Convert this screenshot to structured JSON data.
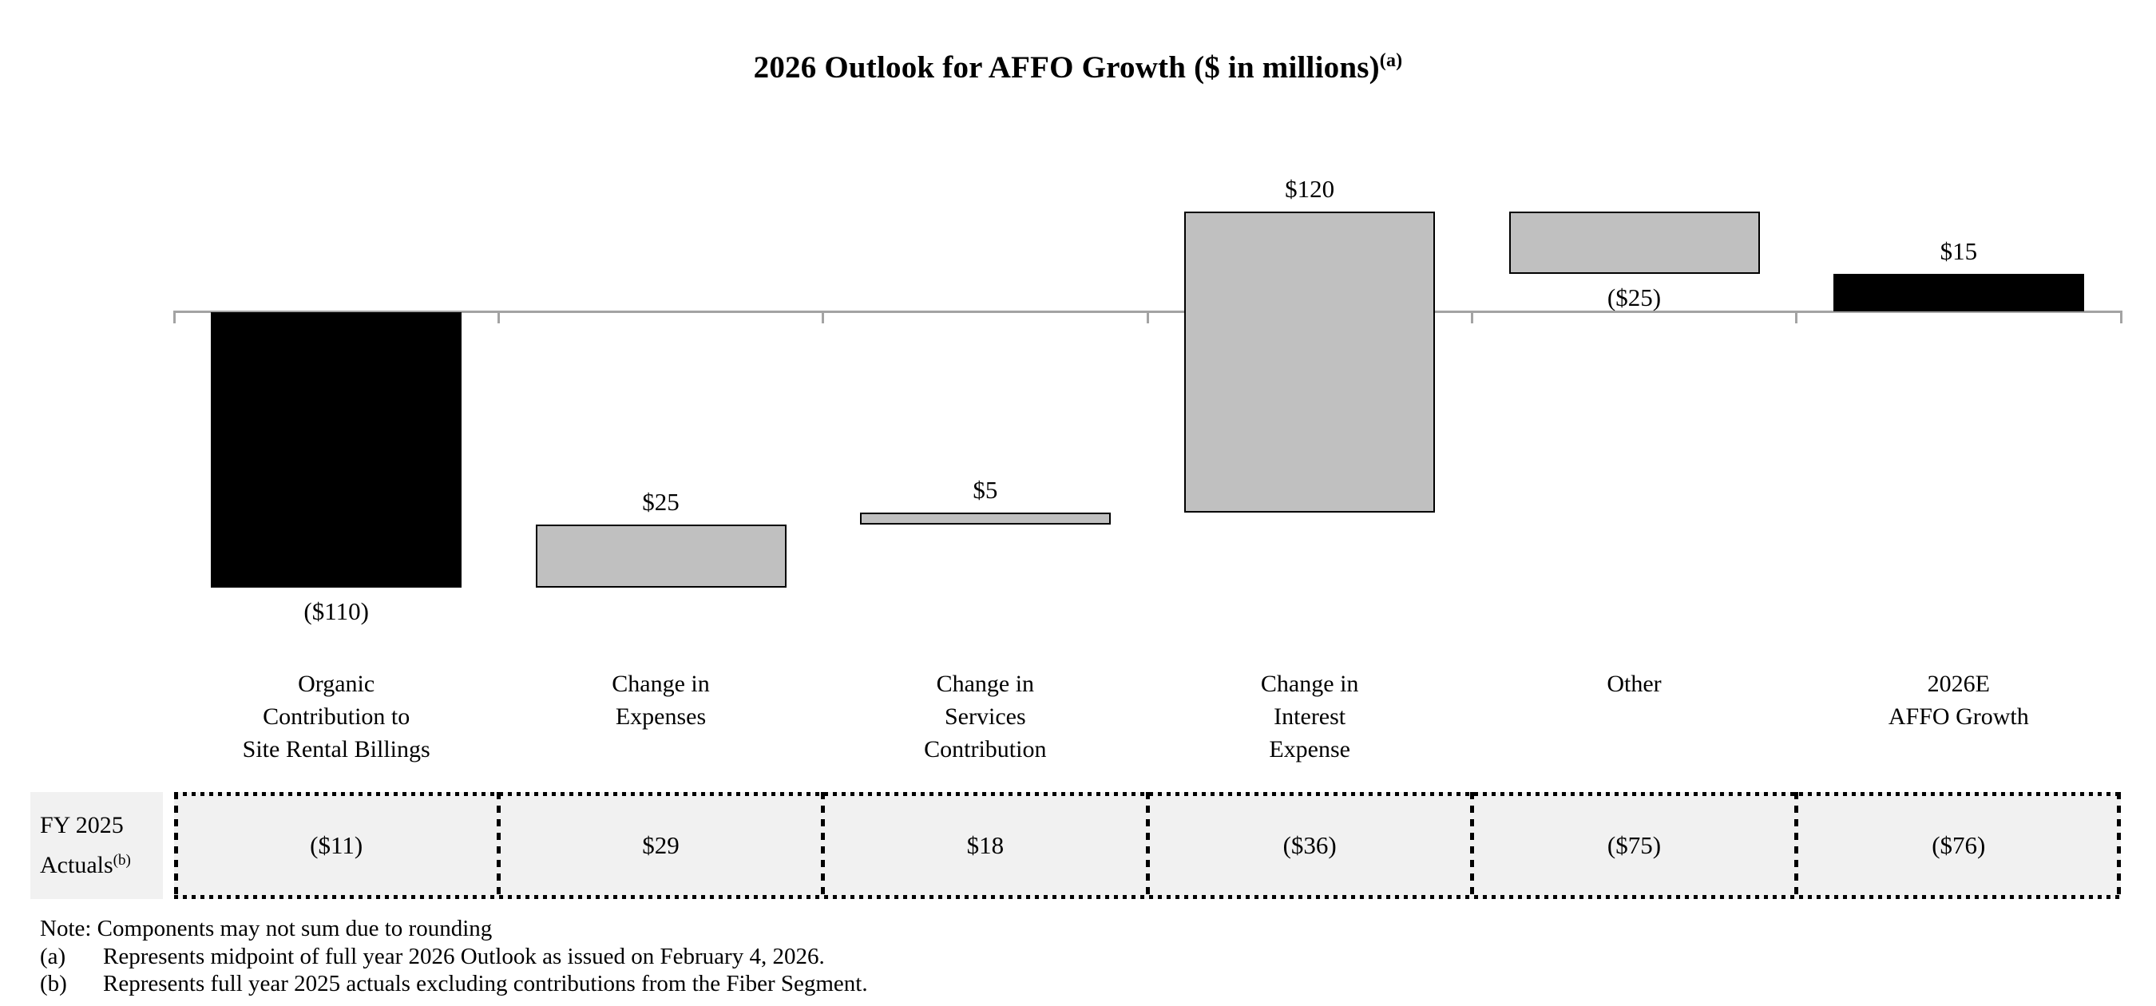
{
  "title": {
    "text": "2026 Outlook for AFFO Growth ($ in millions)",
    "superscript": "(a)"
  },
  "chart_data": {
    "type": "bar",
    "subtype": "waterfall",
    "title": "2026 Outlook for AFFO Growth ($ in millions)(a)",
    "ylim": [
      -110,
      40
    ],
    "grid": false,
    "legend": "none",
    "axis_color": "#a3a3a3",
    "colors": {
      "black": "#000000",
      "gray": "#c0c0c0"
    },
    "categories": [
      "Organic\nContribution to\nSite Rental Billings",
      "Change in\nExpenses",
      "Change in\nServices\nContribution",
      "Change in\nInterest\nExpense",
      "Other",
      "2026E\nAFFO Growth"
    ],
    "bars": [
      {
        "label": "($110)",
        "value": -110,
        "start": 0,
        "end": -110,
        "color": "black",
        "label_position": "below"
      },
      {
        "label": "$25",
        "value": 25,
        "start": -110,
        "end": -85,
        "color": "gray",
        "label_position": "above"
      },
      {
        "label": "$5",
        "value": 5,
        "start": -85,
        "end": -80,
        "color": "gray",
        "label_position": "above"
      },
      {
        "label": "$120",
        "value": 120,
        "start": -80,
        "end": 40,
        "color": "gray",
        "label_position": "above"
      },
      {
        "label": "($25)",
        "value": -25,
        "start": 40,
        "end": 15,
        "color": "gray",
        "label_position": "below"
      },
      {
        "label": "$15",
        "value": 15,
        "start": 0,
        "end": 15,
        "color": "black",
        "label_position": "above"
      }
    ]
  },
  "table": {
    "row_header": {
      "line1": "FY 2025",
      "line2": "Actuals",
      "superscript": "(b)"
    },
    "values": [
      "($11)",
      "$29",
      "$18",
      "($36)",
      "($75)",
      "($76)"
    ]
  },
  "notes": [
    {
      "marker": "",
      "text": "Note: Components may not sum due to rounding"
    },
    {
      "marker": "(a)",
      "text": "Represents midpoint of full year 2026 Outlook as issued on February 4, 2026."
    },
    {
      "marker": "(b)",
      "text": "Represents full year 2025 actuals excluding contributions from the Fiber Segment."
    }
  ]
}
